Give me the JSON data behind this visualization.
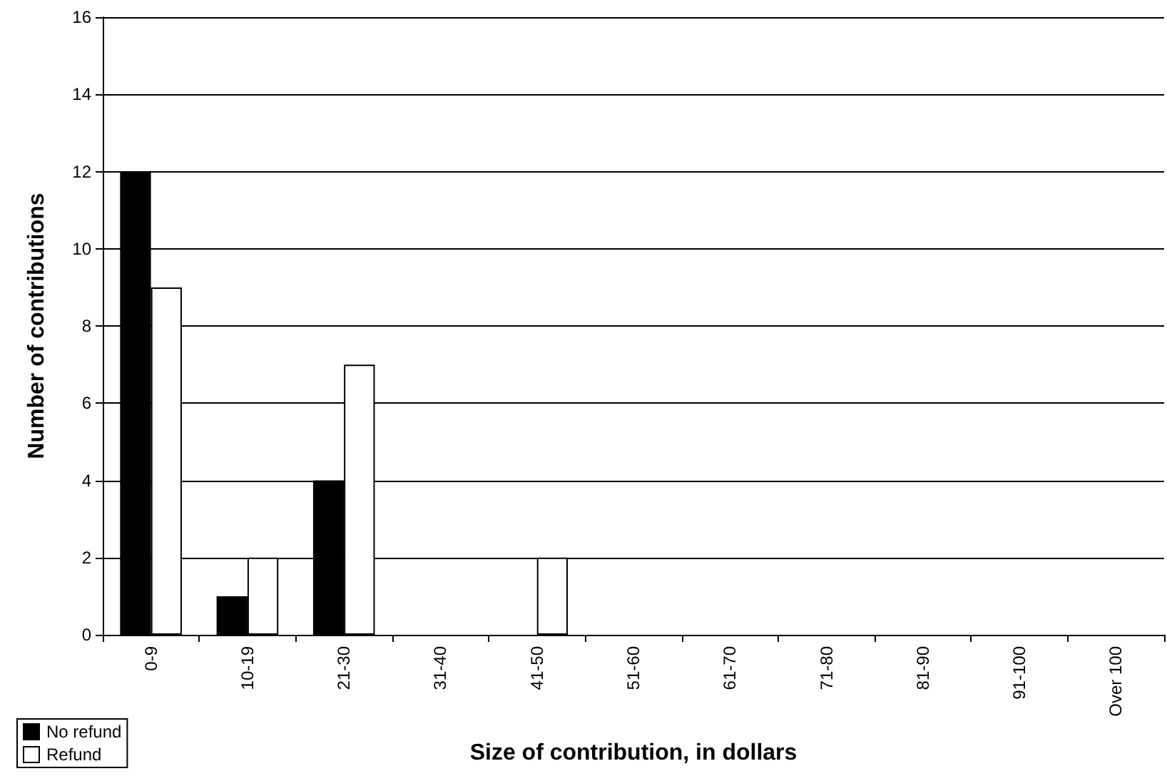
{
  "chart_data": {
    "type": "bar",
    "xlabel": "Size of contribution, in dollars",
    "ylabel": "Number of contributions",
    "categories": [
      "0-9",
      "10-19",
      "21-30",
      "31-40",
      "41-50",
      "51-60",
      "61-70",
      "71-80",
      "81-90",
      "91-100",
      "Over 100"
    ],
    "series": [
      {
        "name": "No refund",
        "color": "#000000",
        "values": [
          12,
          1,
          4,
          0,
          0,
          0,
          0,
          0,
          0,
          0,
          0
        ]
      },
      {
        "name": "Refund",
        "color": "#ffffff",
        "values": [
          9,
          2,
          7,
          0,
          2,
          0,
          0,
          0,
          0,
          0,
          0
        ]
      }
    ],
    "ylim": [
      0,
      16
    ],
    "yticks": [
      0,
      2,
      4,
      6,
      8,
      10,
      12,
      14,
      16
    ],
    "grid": "y",
    "legend": "bottom left"
  }
}
